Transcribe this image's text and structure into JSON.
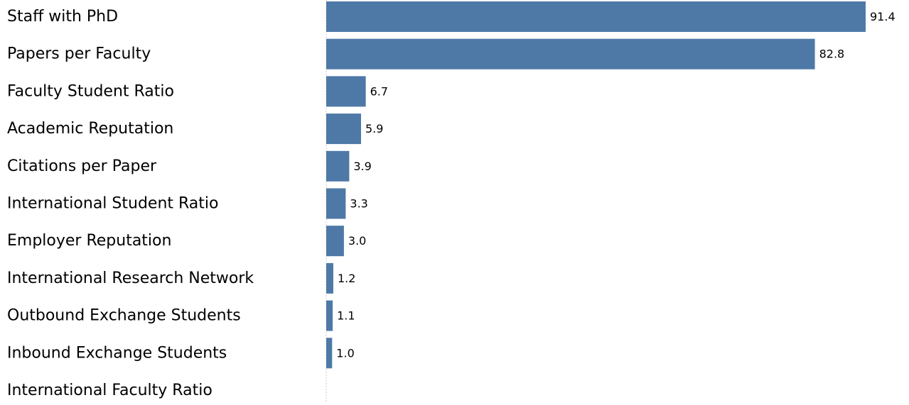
{
  "chart_data": {
    "type": "bar",
    "orientation": "horizontal",
    "categories": [
      "Staff with PhD",
      "Papers per Faculty",
      "Faculty Student Ratio",
      "Academic Reputation",
      "Citations per Paper",
      "International Student Ratio",
      "Employer Reputation",
      "International Research Network",
      "Outbound Exchange Students",
      "Inbound Exchange Students",
      "International Faculty Ratio"
    ],
    "values": [
      91.4,
      82.8,
      6.7,
      5.9,
      3.9,
      3.3,
      3.0,
      1.2,
      1.1,
      1.0,
      null
    ],
    "value_labels": [
      "91.4",
      "82.8",
      "6.7",
      "5.9",
      "3.9",
      "3.3",
      "3.0",
      "1.2",
      "1.1",
      "1.0",
      ""
    ],
    "xlim": [
      0,
      91.4
    ],
    "bar_color": "#4e79a7",
    "axis_color": "#cccccc",
    "grid": false,
    "legend": "none"
  }
}
